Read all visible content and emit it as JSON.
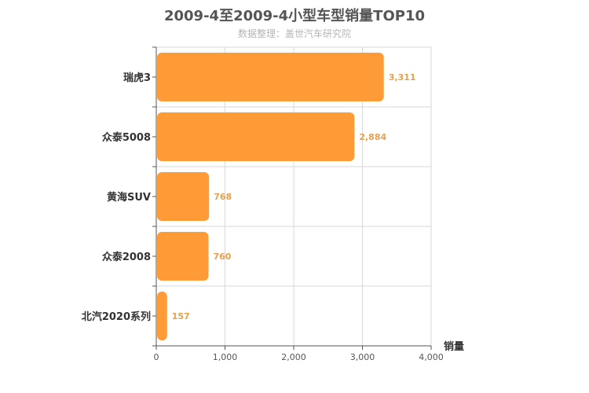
{
  "header": {
    "title": "2009-4至2009-4小型车型销量TOP10",
    "subtitle": "数据整理：盖世汽车研究院"
  },
  "chart_data": {
    "type": "bar",
    "orientation": "horizontal",
    "title": "2009-4至2009-4小型车型销量TOP10",
    "subtitle": "数据整理：盖世汽车研究院",
    "categories": [
      "瑞虎3",
      "众泰5008",
      "黄海SUV",
      "众泰2008",
      "北汽2020系列"
    ],
    "values": [
      3311,
      2884,
      768,
      760,
      157
    ],
    "value_labels": [
      "3,311",
      "2,884",
      "768",
      "760",
      "157"
    ],
    "xlabel": "销量",
    "ylabel": "",
    "xlim": [
      0,
      4000
    ],
    "xticks": [
      0,
      1000,
      2000,
      3000,
      4000
    ],
    "xtick_labels": [
      "0",
      "1,000",
      "2,000",
      "3,000",
      "4,000"
    ],
    "grid": true,
    "colors": {
      "bar": "#ff9b36",
      "value_label": "#e8a04b",
      "grid": "#d9d9d9",
      "axis": "#555555"
    }
  }
}
